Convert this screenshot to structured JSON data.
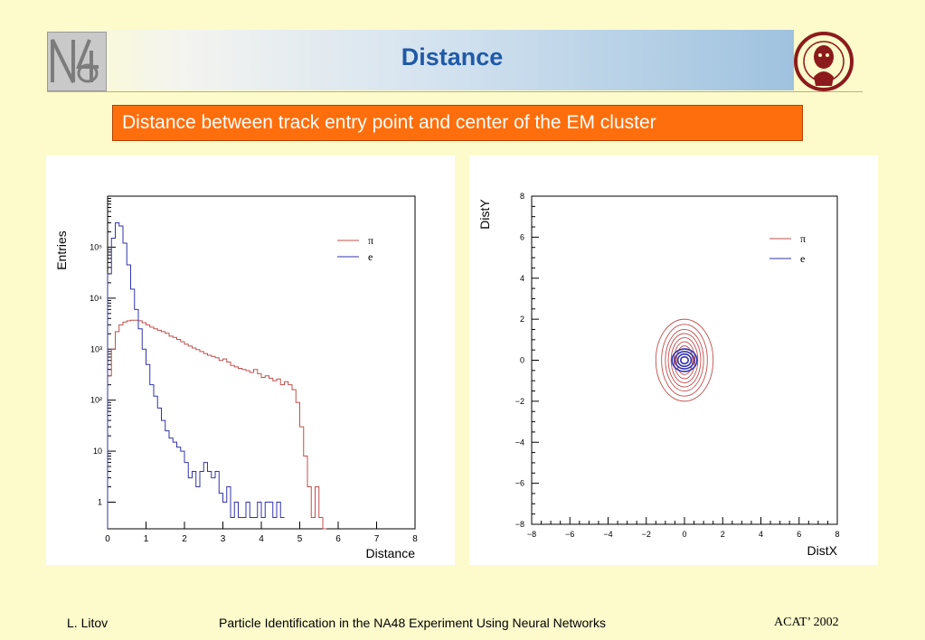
{
  "slide": {
    "title": "Distance",
    "subtitle": "Distance between track entry point and center of the EM cluster"
  },
  "footer": {
    "author": "L. Litov",
    "talk_title": "Particle Identification in the NA48 Experiment Using Neural Networks",
    "conference": "ACAT’ 2002"
  },
  "colors": {
    "accent_title": "#1f5aa8",
    "subtitle_bg": "#ff6e0c",
    "pion": "#c0504d",
    "electron": "#3333aa",
    "background": "#fdfbcb"
  },
  "logos": {
    "left": "NA48",
    "right": "university-seal"
  },
  "chart_data": [
    {
      "type": "line",
      "title": "",
      "xlabel": "Distance",
      "ylabel": "Entries",
      "xlim": [
        0,
        8
      ],
      "ylim": [
        0.3,
        1000000
      ],
      "yscale": "log",
      "x_ticks": [
        "0",
        "1",
        "2",
        "3",
        "4",
        "5",
        "6",
        "7",
        "8"
      ],
      "y_ticks": [
        {
          "value": 1,
          "label": "1"
        },
        {
          "value": 10,
          "label": "10"
        },
        {
          "value": 100,
          "label": "10²"
        },
        {
          "value": 1000,
          "label": "10³"
        },
        {
          "value": 10000,
          "label": "10⁴"
        },
        {
          "value": 100000,
          "label": "10⁵"
        }
      ],
      "legend_position": "top-right",
      "bin_width": 0.1,
      "series": [
        {
          "name": "π",
          "color": "#c0504d",
          "x": [
            0.0,
            0.1,
            0.2,
            0.3,
            0.4,
            0.5,
            0.6,
            0.7,
            0.8,
            0.9,
            1.0,
            1.1,
            1.2,
            1.3,
            1.4,
            1.5,
            1.6,
            1.7,
            1.8,
            1.9,
            2.0,
            2.1,
            2.2,
            2.3,
            2.4,
            2.5,
            2.6,
            2.7,
            2.8,
            2.9,
            3.0,
            3.1,
            3.2,
            3.3,
            3.4,
            3.5,
            3.6,
            3.7,
            3.8,
            3.9,
            4.0,
            4.1,
            4.2,
            4.3,
            4.4,
            4.5,
            4.6,
            4.7,
            4.8,
            4.9,
            5.0,
            5.1,
            5.2,
            5.3,
            5.4,
            5.5,
            5.6
          ],
          "values": [
            300,
            1000,
            2200,
            3000,
            3400,
            3600,
            3700,
            3700,
            3600,
            3300,
            3000,
            2700,
            2500,
            2350,
            2200,
            2050,
            1800,
            1700,
            1550,
            1400,
            1250,
            1150,
            1050,
            980,
            900,
            820,
            760,
            720,
            680,
            600,
            640,
            560,
            480,
            450,
            420,
            400,
            380,
            350,
            400,
            330,
            280,
            300,
            270,
            240,
            260,
            200,
            230,
            200,
            160,
            90,
            30,
            8,
            2,
            0.5,
            2,
            0.5,
            0
          ]
        },
        {
          "name": "e",
          "color": "#3333aa",
          "x": [
            0.0,
            0.1,
            0.2,
            0.3,
            0.4,
            0.5,
            0.6,
            0.7,
            0.8,
            0.9,
            1.0,
            1.1,
            1.2,
            1.3,
            1.4,
            1.5,
            1.6,
            1.7,
            1.8,
            1.9,
            2.0,
            2.1,
            2.2,
            2.3,
            2.4,
            2.5,
            2.6,
            2.7,
            2.8,
            2.9,
            3.0,
            3.1,
            3.2,
            3.3,
            3.4,
            3.5,
            3.6,
            3.7,
            3.8,
            3.9,
            4.0,
            4.1,
            4.2,
            4.3,
            4.4,
            4.5
          ],
          "values": [
            30000,
            150000,
            300000,
            260000,
            120000,
            45000,
            15000,
            6000,
            2500,
            1000,
            500,
            200,
            120,
            70,
            40,
            25,
            18,
            15,
            12,
            10,
            6,
            3,
            4,
            2,
            4,
            6,
            4,
            3,
            4,
            1.5,
            1,
            2,
            0.5,
            1,
            0.5,
            0.5,
            1,
            0.5,
            0.5,
            1,
            0.5,
            1,
            1,
            0.5,
            1,
            0.5
          ]
        }
      ]
    },
    {
      "type": "contour",
      "title": "",
      "xlabel": "DistX",
      "ylabel": "DistY",
      "xlim": [
        -8,
        8
      ],
      "ylim": [
        -8,
        8
      ],
      "x_ticks": [
        "−8",
        "−6",
        "−4",
        "−2",
        "0",
        "2",
        "4",
        "6",
        "8"
      ],
      "y_ticks": [
        "−8",
        "−6",
        "−4",
        "−2",
        "0",
        "2",
        "4",
        "6",
        "8"
      ],
      "legend_position": "top-right",
      "series": [
        {
          "name": "π",
          "color": "#c0504d",
          "center": [
            0,
            0
          ],
          "contour_half_widths": [
            [
              1.5,
              2.0
            ],
            [
              1.2,
              1.75
            ],
            [
              1.0,
              1.5
            ],
            [
              0.85,
              1.3
            ],
            [
              0.7,
              1.1
            ],
            [
              0.55,
              0.9
            ],
            [
              0.42,
              0.7
            ]
          ]
        },
        {
          "name": "e",
          "color": "#3333aa",
          "center": [
            0,
            0
          ],
          "contour_half_widths": [
            [
              0.65,
              0.55
            ],
            [
              0.5,
              0.42
            ],
            [
              0.35,
              0.3
            ],
            [
              0.2,
              0.17
            ]
          ]
        }
      ]
    }
  ]
}
